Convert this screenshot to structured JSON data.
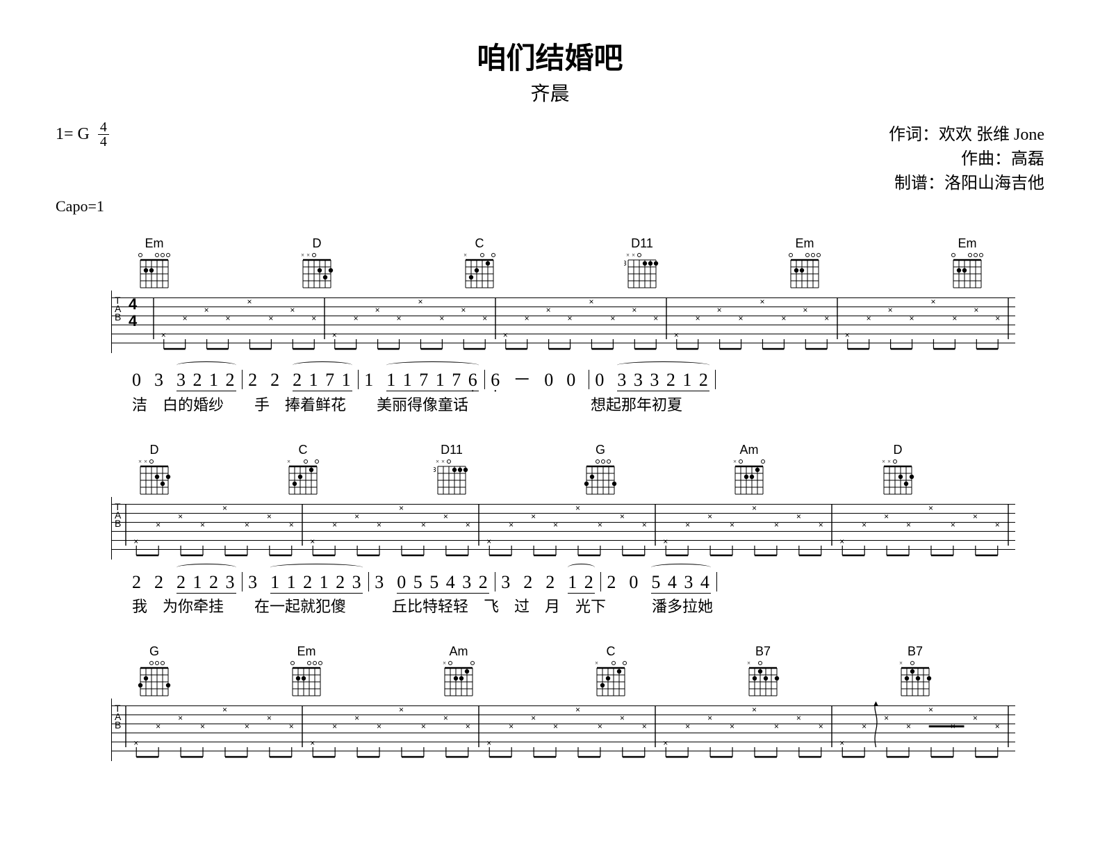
{
  "title": "咱们结婚吧",
  "artist": "齐晨",
  "key_prefix": "1=",
  "key": "G",
  "time_top": "4",
  "time_bot": "4",
  "capo": "Capo=1",
  "credits": {
    "lyricist_label": "作词：",
    "lyricist": "欢欢 张维 Jone",
    "composer_label": "作曲：",
    "composer": "高磊",
    "tab_label": "制谱：",
    "tab": "洛阳山海吉他"
  },
  "systems": [
    {
      "chords": [
        "Em",
        "D",
        "C",
        "D11",
        "Em",
        "Em"
      ],
      "chord_barre": [
        null,
        null,
        null,
        "3",
        null,
        null
      ],
      "num_html": "0&nbsp;&nbsp;3&nbsp;&nbsp;<span class='under tie'>3 2 1 2</span><span class='bar'></span>2&nbsp;&nbsp;2&nbsp;&nbsp;<span class='under tie'>2 1 7 1</span><span class='bar'></span>1&nbsp;&nbsp;<span class='under tie'>1 1 7 1 7 <span class='dotlow'>6</span></span><span class='bar'></span><span class='dotlow'>6</span>&nbsp;&nbsp;－&nbsp;&nbsp;0&nbsp;&nbsp;0&nbsp;<span class='bar'></span>0&nbsp;&nbsp;<span class='under tie'>3 3 3 2 1 2</span><span class='bar'></span>",
      "lyr": "洁　白的婚纱　　手　捧着鲜花　　美丽得像童话　　　　　　　　想起那年初夏"
    },
    {
      "chords": [
        "D",
        "C",
        "D11",
        "G",
        "Am",
        "D"
      ],
      "chord_barre": [
        null,
        null,
        "3",
        null,
        null,
        null
      ],
      "num_html": "2&nbsp;&nbsp;2&nbsp;&nbsp;<span class='under tie'>2 1 2 3</span><span class='bar'></span>3&nbsp;&nbsp;<span class='under tie'>1 1 2 1 2 3</span><span class='bar'></span>3&nbsp;&nbsp;<span class='under'>0 5 5 4 3 2</span><span class='bar'></span>3&nbsp;&nbsp;2&nbsp;&nbsp;2&nbsp;&nbsp;<span class='under tie'>1 2</span><span class='bar'></span>2&nbsp;&nbsp;0&nbsp;&nbsp;<span class='under tie'>5 4 3 4</span><span class='bar'></span>",
      "lyr": "我　为你牵挂　　在一起就犯傻　　　丘比特轻轻　飞　过　月　光下　　　潘多拉她"
    },
    {
      "chords": [
        "G",
        "Em",
        "Am",
        "C",
        "B7",
        "B7"
      ],
      "chord_barre": [
        null,
        null,
        null,
        null,
        null,
        null
      ],
      "num_html": "",
      "lyr": ""
    }
  ],
  "colors": {
    "bg": "#ffffff",
    "ink": "#000000"
  }
}
